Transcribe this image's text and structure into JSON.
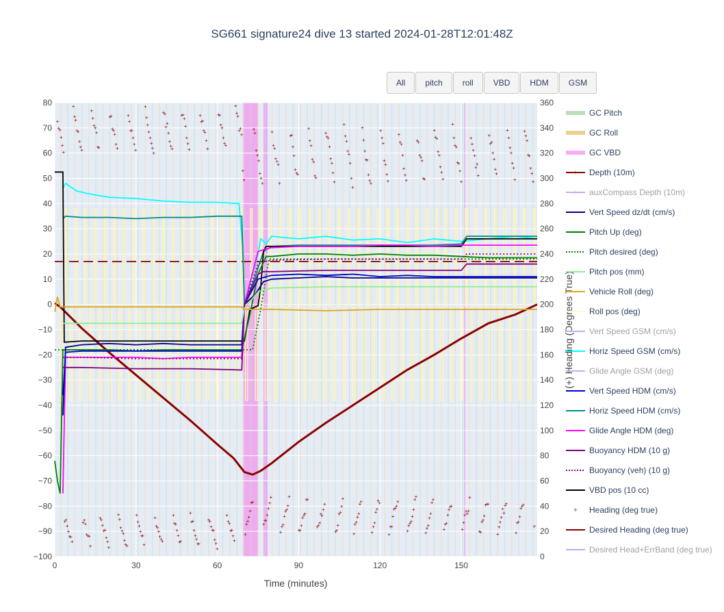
{
  "title": "SG661 signature24 dive 13 started 2024-01-28T12:01:48Z",
  "buttons": [
    "All",
    "pitch",
    "roll",
    "VBD",
    "HDM",
    "GSM"
  ],
  "chart_data": {
    "type": "line",
    "title": "SG661 signature24 dive 13 started 2024-01-28T12:01:48Z",
    "xlabel": "Time (minutes)",
    "ylabel": "",
    "y2label": "(+) Heading (Degrees True)",
    "xlim": [
      0,
      178
    ],
    "ylim": [
      -100,
      80
    ],
    "y2lim": [
      0,
      360
    ],
    "x_ticks": [
      "0",
      "30",
      "60",
      "90",
      "120",
      "150"
    ],
    "y_ticks": [
      "−100",
      "−90",
      "−80",
      "−70",
      "−60",
      "−50",
      "−40",
      "−30",
      "−20",
      "−10",
      "0",
      "10",
      "20",
      "30",
      "40",
      "50",
      "60",
      "70",
      "80"
    ],
    "y2_ticks": [
      "0",
      "20",
      "40",
      "60",
      "80",
      "100",
      "120",
      "140",
      "160",
      "180",
      "200",
      "220",
      "240",
      "260",
      "280",
      "300",
      "320",
      "340",
      "360"
    ],
    "grid": true,
    "legend_position": "right",
    "legend": [
      {
        "name": "GC Pitch",
        "color": "#b0d8b0",
        "style": "band",
        "visible": true
      },
      {
        "name": "GC Roll",
        "color": "#e8c97a",
        "style": "band",
        "visible": true
      },
      {
        "name": "GC VBD",
        "color": "#f5a0f5",
        "style": "band",
        "visible": true
      },
      {
        "name": "Depth (10m)",
        "color": "#8b0000",
        "style": "line-marker",
        "visible": true
      },
      {
        "name": "auxCompass Depth (10m)",
        "color": "#b080e0",
        "style": "line-marker",
        "visible": false
      },
      {
        "name": "Vert Speed dz/dt (cm/s)",
        "color": "#00008b",
        "style": "line",
        "visible": true
      },
      {
        "name": "Pitch Up (deg)",
        "color": "#008000",
        "style": "line",
        "visible": true
      },
      {
        "name": "Pitch desired (deg)",
        "color": "#008000",
        "style": "dot",
        "visible": true
      },
      {
        "name": "Pitch pos (mm)",
        "color": "#90ee90",
        "style": "line",
        "visible": true
      },
      {
        "name": "Vehicle Roll (deg)",
        "color": "#daa520",
        "style": "line",
        "visible": true
      },
      {
        "name": "Roll pos (deg)",
        "color": "#fffacd",
        "style": "line",
        "visible": true
      },
      {
        "name": "Vert Speed GSM (cm/s)",
        "color": "#c0d8f0",
        "style": "line",
        "visible": false
      },
      {
        "name": "Horiz Speed GSM (cm/s)",
        "color": "#00ffff",
        "style": "line",
        "visible": true
      },
      {
        "name": "Glide Angle GSM (deg)",
        "color": "#f0b0f0",
        "style": "line",
        "visible": false
      },
      {
        "name": "Vert Speed HDM (cm/s)",
        "color": "#0000cd",
        "style": "line",
        "visible": true
      },
      {
        "name": "Horiz Speed HDM (cm/s)",
        "color": "#008b8b",
        "style": "line",
        "visible": true
      },
      {
        "name": "Glide Angle HDM (deg)",
        "color": "#ff00ff",
        "style": "line",
        "visible": true
      },
      {
        "name": "Buoyancy HDM (10 g)",
        "color": "#800080",
        "style": "line",
        "visible": true
      },
      {
        "name": "Buoyancy (veh) (10 g)",
        "color": "#800080",
        "style": "dot",
        "visible": true
      },
      {
        "name": "VBD pos (10 cc)",
        "color": "#000000",
        "style": "line",
        "visible": true
      },
      {
        "name": "Heading (deg true)",
        "color": "#8b0000",
        "style": "marker",
        "visible": true
      },
      {
        "name": "Desired Heading (deg true)",
        "color": "#8b0000",
        "style": "dash",
        "visible": true
      },
      {
        "name": "Desired Head+ErrBand (deg true)",
        "color": "#e9967a",
        "style": "dash",
        "visible": false
      }
    ],
    "series": [
      {
        "name": "Depth (10m)",
        "color": "#8b0000",
        "axis": "y",
        "x": [
          0,
          2,
          10,
          20,
          30,
          40,
          50,
          60,
          66,
          70,
          73,
          76,
          80,
          90,
          100,
          110,
          120,
          130,
          140,
          150,
          160,
          170,
          178
        ],
        "y": [
          0.5,
          -1,
          -9.5,
          -19,
          -28,
          -37,
          -46,
          -55.5,
          -61,
          -66.5,
          -67.5,
          -66,
          -63,
          -54.5,
          -47,
          -40,
          -33,
          -26,
          -20,
          -13.5,
          -7.5,
          -4,
          0
        ]
      },
      {
        "name": "Desired Heading (deg true)",
        "color": "#8b0000",
        "axis": "y2",
        "dash": true,
        "x": [
          0,
          178
        ],
        "y": [
          234,
          234
        ]
      },
      {
        "name": "Horiz Speed GSM (cm/s)",
        "color": "#00ffff",
        "axis": "y",
        "x": [
          3,
          4,
          8,
          12,
          20,
          30,
          40,
          50,
          60,
          68,
          69.5,
          70,
          73,
          75,
          76,
          78,
          80,
          90,
          100,
          110,
          120,
          130,
          140,
          150,
          160,
          170,
          178
        ],
        "y": [
          46,
          48,
          45,
          44,
          42.5,
          42,
          41,
          40.5,
          40.5,
          40,
          20,
          0,
          12,
          20,
          26,
          24,
          27,
          26,
          27,
          25.5,
          26,
          24.5,
          26,
          25,
          26,
          27,
          26
        ]
      },
      {
        "name": "Horiz Speed HDM (cm/s)",
        "color": "#008b8b",
        "axis": "y",
        "x": [
          3,
          4,
          10,
          20,
          30,
          40,
          50,
          60,
          69,
          70,
          74,
          77,
          80,
          90,
          100,
          110,
          120,
          130,
          140,
          150,
          152,
          160,
          170,
          178
        ],
        "y": [
          34,
          35,
          34.5,
          34.5,
          34,
          34.5,
          34.5,
          35,
          35,
          0,
          11,
          21,
          23,
          23.5,
          23.5,
          23.5,
          23.5,
          23.5,
          23.5,
          24,
          27,
          27,
          27,
          27
        ]
      },
      {
        "name": "VBD pos (10 cc)",
        "color": "#000000",
        "axis": "y",
        "x": [
          0,
          3,
          3.5,
          10,
          30,
          50,
          65,
          70,
          72,
          75,
          76,
          77,
          78,
          80,
          100,
          120,
          150,
          152,
          160,
          178
        ],
        "y": [
          52.5,
          52.5,
          -15,
          -14.5,
          -14.5,
          -14.5,
          -14.5,
          -14.5,
          -2,
          -0.5,
          7,
          21,
          23,
          23,
          23,
          23,
          23,
          26,
          26,
          26
        ]
      },
      {
        "name": "Glide Angle HDM (deg)",
        "color": "#ff00ff",
        "axis": "y",
        "x": [
          3,
          4,
          10,
          20,
          30,
          40,
          50,
          60,
          69,
          70,
          75,
          78,
          80,
          90,
          100,
          110,
          120,
          130,
          140,
          150,
          160,
          170,
          178
        ],
        "y": [
          -75,
          -21,
          -21,
          -21,
          -21,
          -21.5,
          -21,
          -21,
          -21,
          0,
          21,
          22,
          22.5,
          23,
          23,
          23,
          23.5,
          23.5,
          23,
          23.5,
          23.5,
          23.5,
          23.5
        ]
      },
      {
        "name": "Pitch Up (deg)",
        "color": "#008000",
        "axis": "y",
        "x": [
          0,
          1,
          2,
          3,
          10,
          20,
          30,
          40,
          50,
          60,
          69,
          72,
          75,
          78,
          80,
          90,
          100,
          110,
          120,
          130,
          140,
          150,
          160,
          170,
          178
        ],
        "y": [
          -62,
          -70,
          -75,
          -18,
          -18,
          -18,
          -18.5,
          -18,
          -18,
          -18,
          -18,
          -4,
          12,
          19,
          19,
          20,
          20,
          19.5,
          20,
          19.5,
          19.5,
          19,
          18.5,
          18.5,
          18.5
        ]
      },
      {
        "name": "Pitch desired (deg)",
        "color": "#008000",
        "axis": "y",
        "dot": true,
        "x": [
          0,
          69,
          70,
          73,
          76,
          79,
          178
        ],
        "y": [
          -18,
          -18,
          -18,
          -18,
          -2,
          18,
          18
        ]
      },
      {
        "name": "Vert Speed dz/dt (cm/s)",
        "color": "#00008b",
        "axis": "y",
        "x": [
          3,
          4,
          10,
          20,
          30,
          40,
          50,
          60,
          69,
          70,
          74,
          77,
          80,
          90,
          100,
          110,
          120,
          130,
          140,
          150,
          160,
          170,
          178
        ],
        "y": [
          -44,
          -17,
          -16,
          -15.5,
          -16,
          -15.5,
          -16,
          -16,
          -16,
          0,
          4,
          9,
          10,
          10.5,
          11,
          10.5,
          10.5,
          10.5,
          10.5,
          10.5,
          10.5,
          10.5,
          10.5
        ]
      },
      {
        "name": "Vert Speed HDM (cm/s)",
        "color": "#0000cd",
        "axis": "y",
        "x": [
          3,
          4,
          10,
          20,
          30,
          40,
          50,
          60,
          69,
          70,
          75,
          78,
          80,
          90,
          100,
          110,
          120,
          130,
          140,
          150,
          160,
          170,
          178
        ],
        "y": [
          -36,
          -19,
          -18.5,
          -18.5,
          -18.5,
          -18.5,
          -18.5,
          -18.5,
          -18.5,
          0,
          10,
          11,
          11.5,
          12,
          11.5,
          12,
          11,
          11.5,
          11,
          11,
          11,
          11,
          11
        ]
      },
      {
        "name": "Buoyancy HDM (10 g)",
        "color": "#800080",
        "axis": "y",
        "x": [
          3,
          4,
          10,
          30,
          50,
          69,
          70,
          75,
          77,
          80,
          100,
          120,
          150,
          152,
          178
        ],
        "y": [
          -25,
          -25,
          -25,
          -25.5,
          -25.5,
          -26,
          0,
          12,
          13,
          13,
          13.5,
          13.5,
          13.5,
          16,
          16
        ]
      },
      {
        "name": "Buoyancy (veh) (10 g)",
        "color": "#800080",
        "axis": "y",
        "dot": true,
        "x": [
          3,
          4,
          10,
          30,
          50,
          69,
          70,
          75,
          77,
          80,
          100,
          120,
          150,
          152,
          178
        ],
        "y": [
          -21,
          -21,
          -21,
          -21.5,
          -21.5,
          -21.5,
          0,
          16,
          17,
          17.5,
          18,
          18,
          18,
          20,
          20
        ]
      },
      {
        "name": "Pitch pos (mm)",
        "color": "#90ee90",
        "axis": "y",
        "x": [
          3,
          4,
          10,
          30,
          50,
          69,
          70,
          75,
          80,
          100,
          120,
          150,
          178
        ],
        "y": [
          -7.5,
          -7.5,
          -7.5,
          -7.5,
          -7.5,
          -7.5,
          -1.5,
          5,
          6.5,
          7,
          7,
          7,
          7
        ]
      },
      {
        "name": "Vehicle Roll (deg)",
        "color": "#daa520",
        "axis": "y",
        "x": [
          0,
          1,
          2,
          3,
          10,
          30,
          50,
          69,
          70,
          80,
          100,
          120,
          150,
          178
        ],
        "y": [
          -3,
          3,
          -1,
          -1,
          -1,
          -1,
          -1,
          -1,
          -2,
          -2,
          -2.5,
          -2,
          -2,
          -2
        ]
      },
      {
        "name": "Roll pos (deg)",
        "color": "#fffacd",
        "axis": "y",
        "x": [
          0,
          178
        ],
        "y": [
          -1,
          -1
        ]
      }
    ]
  }
}
